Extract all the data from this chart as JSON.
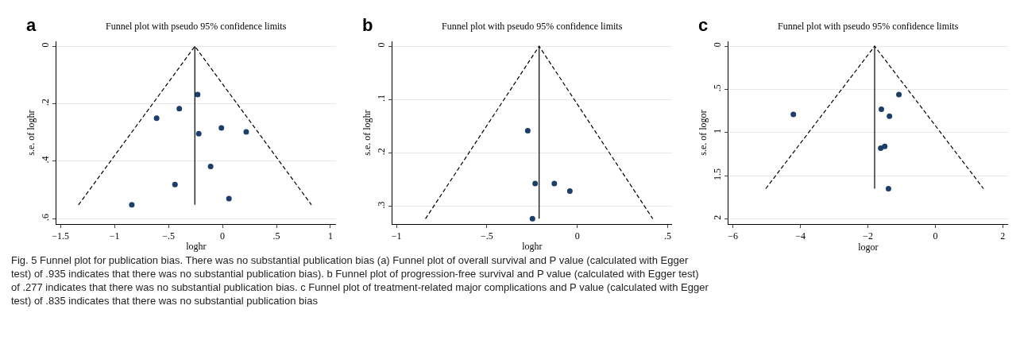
{
  "chart_data": [
    {
      "type": "scatter",
      "title": "Funnel plot with pseudo 95% confidence limits",
      "xlabel": "loghr",
      "ylabel": "s.e. of loghr",
      "annotations": [
        "a",
        "Fig. 5 Funnel plot for publication bias. There was no substantial publication bias (a) Funnel plot of overall survival and P value (calculated with Egger test) of .935 indicates that there was no substantial publication bias). b Funnel plot of progression-free survival and P value (calculated with Egger test) of .277 indicates that there was no substantial publication bias. c Funnel plot of treatment-related major complications and P value (calculated with Egger test) of .835 indicates that there was no substantial publication bias"
      ],
      "xlim": [
        -1.537,
        1.049
      ],
      "ylim": [
        0.619,
        -0.017
      ],
      "xticks": [
        {
          "value": -1.5,
          "label": "−1.5"
        },
        {
          "value": -1,
          "label": "−1"
        },
        {
          "value": -0.5,
          "label": "−.5"
        },
        0,
        {
          "value": 0.5,
          "label": ".5"
        },
        1
      ],
      "yticks": [
        0,
        {
          "value": 0.2,
          "label": ".2"
        },
        {
          "value": 0.4,
          "label": ".4"
        },
        {
          "value": 0.6,
          "label": ".6"
        }
      ],
      "grid": "y",
      "marker": "circle",
      "series": [
        {
          "color": "#1b3f6a",
          "x": [
            -0.23,
            -0.4,
            -0.61,
            -0.01,
            0.22,
            -0.22,
            -0.11,
            -0.44,
            0.06,
            -0.84
          ],
          "values": [
            0.168,
            0.217,
            0.25,
            0.284,
            0.298,
            0.304,
            0.418,
            0.481,
            0.53,
            0.552
          ]
        },
        {
          "type": "line",
          "marker": "none",
          "color": "#000000",
          "line_style": "solid",
          "x": [
            -0.256,
            -0.256
          ],
          "values": [
            0,
            0.552
          ]
        },
        {
          "type": "line",
          "marker": "none",
          "color": "#000000",
          "line_style": "dashed",
          "x": [
            -1.334,
            -0.256,
            0.824
          ],
          "values": [
            0.552,
            0,
            0.552
          ]
        }
      ]
    },
    {
      "type": "scatter",
      "title": "Funnel plot with pseudo 95% confidence limits",
      "xlabel": "loghr",
      "ylabel": "s.e. of loghr",
      "annotations": [
        "b"
      ],
      "xlim": [
        -1.022,
        0.523
      ],
      "ylim": [
        0.333,
        -0.009
      ],
      "xticks": [
        {
          "value": -1,
          "label": "−1"
        },
        {
          "value": -0.5,
          "label": "−.5"
        },
        0,
        {
          "value": 0.5,
          "label": ".5"
        }
      ],
      "yticks": [
        0,
        {
          "value": 0.1,
          "label": ".1"
        },
        {
          "value": 0.2,
          "label": ".2"
        },
        {
          "value": 0.3,
          "label": ".3"
        }
      ],
      "grid": "y",
      "marker": "circle",
      "series": [
        {
          "color": "#1b3f6a",
          "x": [
            -0.274,
            -0.235,
            -0.233,
            -0.127,
            -0.041,
            -0.248
          ],
          "values": [
            0.158,
            null,
            0.257,
            0.257,
            0.271,
            0.323
          ]
        },
        {
          "type": "line",
          "marker": "none",
          "color": "#000000",
          "line_style": "solid",
          "x": [
            -0.211,
            -0.211
          ],
          "values": [
            0,
            0.323
          ]
        },
        {
          "type": "line",
          "marker": "none",
          "color": "#000000",
          "line_style": "dashed",
          "x": [
            -0.84,
            -0.211,
            0.418
          ],
          "values": [
            0.323,
            0,
            0.323
          ]
        }
      ]
    },
    {
      "type": "scatter",
      "title": "Funnel plot with pseudo 95% confidence limits",
      "xlabel": "logor",
      "ylabel": "s.e. of logor",
      "annotations": [
        "c"
      ],
      "xlim": [
        -6.13,
        2.15
      ],
      "ylim": [
        2.06,
        -0.055
      ],
      "xticks": [
        {
          "value": -6,
          "label": "−6"
        },
        {
          "value": -4,
          "label": "−4"
        },
        {
          "value": -2,
          "label": "−2"
        },
        0,
        2
      ],
      "yticks": [
        0,
        {
          "value": 0.5,
          "label": ".5"
        },
        1,
        1.5,
        2
      ],
      "grid": "y",
      "marker": "circle",
      "series": [
        {
          "color": "#1b3f6a",
          "x": [
            -1.08,
            -4.21,
            -1.6,
            -1.36,
            -1.5,
            -1.62,
            -1.39
          ],
          "values": [
            0.56,
            0.79,
            0.73,
            0.81,
            1.16,
            1.18,
            1.65
          ]
        },
        {
          "type": "line",
          "marker": "none",
          "color": "#000000",
          "line_style": "solid",
          "x": [
            -1.8,
            -1.8
          ],
          "values": [
            0,
            1.65
          ]
        },
        {
          "type": "line",
          "marker": "none",
          "color": "#000000",
          "line_style": "dashed",
          "x": [
            -5.03,
            -1.8,
            1.43
          ],
          "values": [
            1.65,
            0,
            1.65
          ]
        }
      ]
    }
  ]
}
